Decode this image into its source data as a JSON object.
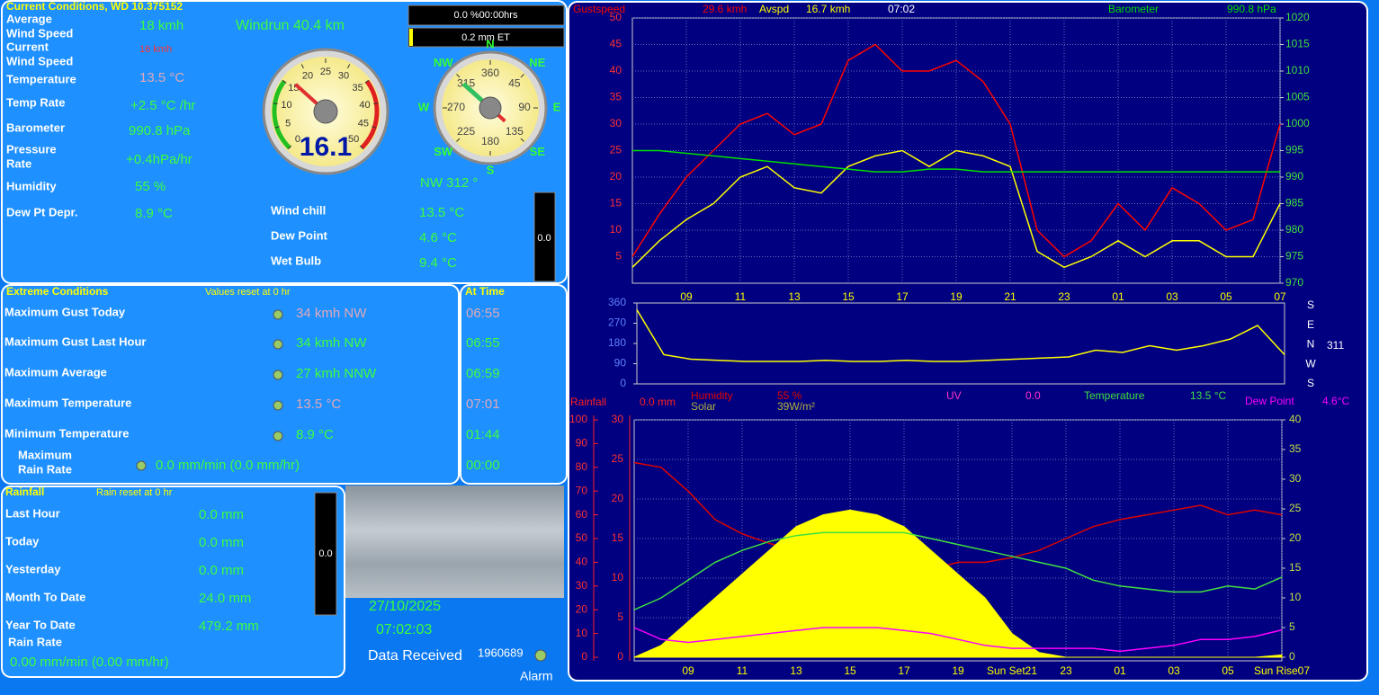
{
  "current": {
    "title": "Current Conditions, WD 10.375152",
    "avg_wind": {
      "label": [
        "Average",
        "Wind Speed"
      ],
      "value": "18 kmh"
    },
    "cur_wind": {
      "label": [
        "Current",
        "Wind Speed"
      ],
      "value": "16 kmh"
    },
    "temperature": {
      "label": "Temperature",
      "value": "13.5 °C"
    },
    "temp_rate": {
      "label": "Temp Rate",
      "value": "+2.5 °C /hr"
    },
    "barometer": {
      "label": "Barometer",
      "value": "990.8 hPa"
    },
    "pressure_rate": {
      "label": [
        "Pressure",
        "Rate"
      ],
      "value": "+0.4hPa/hr"
    },
    "humidity": {
      "label": "Humidity",
      "value": "55 %"
    },
    "dew_depr": {
      "label": "Dew Pt Depr.",
      "value": "8.9 °C"
    },
    "windrun": "Windrun 40.4 km",
    "wind_chill": {
      "label": "Wind chill",
      "value": "13.5 °C"
    },
    "dew_point": {
      "label": "Dew Point",
      "value": "4.6 °C"
    },
    "wet_bulb": {
      "label": "Wet Bulb",
      "value": "9.4 °C"
    },
    "sunshine": "0.0 %00:00hrs",
    "et": "0.2 mm ET",
    "rain_bar": "0.0",
    "wind_gauge": {
      "lim": [
        0,
        50
      ],
      "ticks": [
        0,
        5,
        10,
        15,
        20,
        25,
        30,
        35,
        40,
        45,
        50
      ],
      "value": 16.1
    },
    "compass": {
      "points": [
        "N",
        "NE",
        "E",
        "SE",
        "S",
        "SW",
        "W",
        "NW"
      ],
      "ticks": [
        360,
        45,
        90,
        135,
        180,
        225,
        270,
        315
      ],
      "direction": 312,
      "readout": "NW  312 °"
    }
  },
  "extreme": {
    "title": "Extreme Conditions",
    "note": "Values reset at 0 hr",
    "time_title": "At Time",
    "rows": [
      {
        "label": "Maximum Gust Today",
        "value": "34 kmh  NW",
        "time": "06:55"
      },
      {
        "label": "Maximum Gust Last Hour",
        "value": "34 kmh  NW",
        "time": "06:55"
      },
      {
        "label": "Maximum Average",
        "value": "27 kmh NNW",
        "time": "06:59"
      },
      {
        "label": "Maximum Temperature",
        "value": "13.5 °C",
        "time": "07:01"
      },
      {
        "label": "Minimum Temperature",
        "value": "8.9 °C",
        "time": "01:44"
      }
    ],
    "rain_rate": {
      "label": [
        "Maximum",
        "Rain Rate"
      ],
      "value": "0.0 mm/min (0.0 mm/hr)",
      "time": "00:00"
    }
  },
  "rainfall": {
    "title": "Rainfall",
    "note": "Rain reset at 0 hr",
    "rows": [
      {
        "label": "Last Hour",
        "value": "0.0 mm"
      },
      {
        "label": "Today",
        "value": "0.0 mm"
      },
      {
        "label": "Yesterday",
        "value": "0.0 mm"
      },
      {
        "label": "Month To Date",
        "value": "24.0 mm"
      },
      {
        "label": "Year To Date",
        "value": "479.2 mm"
      }
    ],
    "rate": {
      "label": "Rain Rate",
      "value": "0.00 mm/min (0.00 mm/hr)"
    },
    "bar": "0.0"
  },
  "status": {
    "date": "27/10/2025",
    "time": "07:02:03",
    "received": "Data Received",
    "count": "1960689",
    "alarm": "Alarm"
  },
  "chart_data": [
    {
      "type": "line",
      "time": "07:02",
      "x": [
        0,
        1,
        2,
        3,
        4,
        5,
        6,
        7,
        8,
        9,
        10,
        11,
        12,
        13,
        14,
        15,
        16,
        17,
        18,
        19,
        20,
        21,
        22,
        23,
        24
      ],
      "xlim": [
        0,
        24
      ],
      "xticks": [
        {
          "value": 2,
          "label": "09"
        },
        {
          "value": 4,
          "label": "11"
        },
        {
          "value": 6,
          "label": "13"
        },
        {
          "value": 8,
          "label": "15"
        },
        {
          "value": 10,
          "label": "17"
        },
        {
          "value": 12,
          "label": "19"
        },
        {
          "value": 14,
          "label": "21"
        },
        {
          "value": 16,
          "label": "23"
        },
        {
          "value": 18,
          "label": "01"
        },
        {
          "value": 20,
          "label": "03"
        },
        {
          "value": 22,
          "label": "05"
        },
        {
          "value": 24,
          "label": "07"
        }
      ],
      "ylim": [
        0,
        50
      ],
      "yticks": [
        5,
        10,
        15,
        20,
        25,
        30,
        35,
        40,
        45,
        50
      ],
      "y2lim": [
        970,
        1020
      ],
      "y2ticks": [
        970,
        975,
        980,
        985,
        990,
        995,
        1000,
        1005,
        1010,
        1015,
        1020
      ],
      "grid": true,
      "series": [
        {
          "name": "Gustspeed",
          "reading": "29.6 kmh",
          "color": "#ff0000",
          "values": [
            5,
            13,
            20,
            25,
            30,
            32,
            28,
            30,
            42,
            45,
            40,
            40,
            42,
            38,
            30,
            10,
            5,
            8,
            15,
            10,
            18,
            15,
            10,
            12,
            30
          ]
        },
        {
          "name": "Avspd",
          "reading": "16.7 kmh",
          "color": "#ffff00",
          "values": [
            3,
            8,
            12,
            15,
            20,
            22,
            18,
            17,
            22,
            24,
            25,
            22,
            25,
            24,
            22,
            6,
            3,
            5,
            8,
            5,
            8,
            8,
            5,
            5,
            15
          ]
        },
        {
          "name": "Barometer",
          "reading": "990.8 hPa",
          "color": "#00e000",
          "axis": "y2",
          "values": [
            995,
            995,
            994.5,
            994,
            993.5,
            993,
            992.5,
            992,
            991.5,
            991,
            991,
            991.5,
            991.5,
            991,
            991,
            991,
            991,
            991,
            991,
            991,
            991,
            991,
            991,
            991,
            991
          ]
        }
      ]
    },
    {
      "type": "line",
      "x": [
        0,
        1,
        2,
        3,
        4,
        5,
        6,
        7,
        8,
        9,
        10,
        11,
        12,
        13,
        14,
        15,
        16,
        17,
        18,
        19,
        20,
        21,
        22,
        23,
        24
      ],
      "xlim": [
        0,
        24
      ],
      "ylim": [
        0,
        360
      ],
      "yticks": [
        0,
        90,
        180,
        270,
        360
      ],
      "side_labels": [
        "S",
        "E",
        "N",
        "W",
        "S"
      ],
      "current": "311",
      "series": [
        {
          "color": "#ffff00",
          "values": [
            330,
            130,
            110,
            105,
            100,
            100,
            100,
            105,
            100,
            100,
            105,
            100,
            100,
            105,
            110,
            115,
            120,
            150,
            140,
            170,
            150,
            170,
            200,
            260,
            130
          ]
        }
      ]
    },
    {
      "type": "line",
      "x": [
        0,
        1,
        2,
        3,
        4,
        5,
        6,
        7,
        8,
        9,
        10,
        11,
        12,
        13,
        14,
        15,
        16,
        17,
        18,
        19,
        20,
        21,
        22,
        23,
        24
      ],
      "xlim": [
        0,
        24
      ],
      "xticks": [
        {
          "value": 2,
          "label": "09"
        },
        {
          "value": 4,
          "label": "11"
        },
        {
          "value": 6,
          "label": "13"
        },
        {
          "value": 8,
          "label": "15"
        },
        {
          "value": 10,
          "label": "17"
        },
        {
          "value": 12,
          "label": "19"
        },
        {
          "value": 14,
          "label": "Sun Set21"
        },
        {
          "value": 16,
          "label": "23"
        },
        {
          "value": 18,
          "label": "01"
        },
        {
          "value": 20,
          "label": "03"
        },
        {
          "value": 22,
          "label": "05"
        },
        {
          "value": 24,
          "label": "Sun Rise07"
        }
      ],
      "ylim": [
        0,
        100
      ],
      "yticks": [
        0,
        10,
        20,
        30,
        40,
        50,
        60,
        70,
        80,
        90,
        100
      ],
      "y3lim": [
        0,
        30
      ],
      "y3ticks": [
        0,
        5,
        10,
        15,
        20,
        25,
        30
      ],
      "y2lim": [
        0,
        40
      ],
      "y2ticks": [
        0,
        5,
        10,
        15,
        20,
        25,
        30,
        35,
        40
      ],
      "grid": true,
      "series": [
        {
          "name": "Rainfall",
          "reading": "0.0 mm",
          "color": "#ff2020"
        },
        {
          "name": "Humidity",
          "reading": "55 %",
          "color": "#e00000",
          "values": [
            82,
            80,
            70,
            58,
            52,
            48,
            45,
            42,
            42,
            40,
            38,
            37,
            40,
            40,
            42,
            45,
            50,
            55,
            58,
            60,
            62,
            64,
            60,
            62,
            60
          ]
        },
        {
          "name": "Solar",
          "reading": "39W/m²",
          "color": "#ffff00",
          "values": [
            0,
            5,
            15,
            25,
            35,
            45,
            55,
            60,
            62,
            60,
            55,
            45,
            35,
            25,
            10,
            2,
            0,
            0,
            0,
            0,
            0,
            0,
            0,
            0,
            1
          ]
        },
        {
          "name": "UV",
          "reading": "0.0",
          "color": "#ff33cc"
        },
        {
          "name": "Temperature",
          "reading": "13.5 °C",
          "color": "#40e040",
          "axis": "y2",
          "values": [
            8,
            10,
            13,
            16,
            18,
            19.5,
            20.5,
            21,
            21,
            21,
            21,
            20,
            19,
            18,
            17,
            16,
            15,
            13,
            12,
            11.5,
            11,
            11,
            12,
            11.5,
            13.5
          ]
        },
        {
          "name": "Dew Point",
          "reading": "4.6°C",
          "color": "#ff00ff",
          "axis": "y2",
          "values": [
            5,
            3,
            2.5,
            3,
            3.5,
            4,
            4.5,
            5,
            5,
            5,
            4.5,
            4,
            3,
            2,
            1.5,
            1.5,
            1.5,
            1.5,
            1,
            1.5,
            2,
            3,
            3,
            3.5,
            4.6
          ]
        }
      ]
    }
  ]
}
